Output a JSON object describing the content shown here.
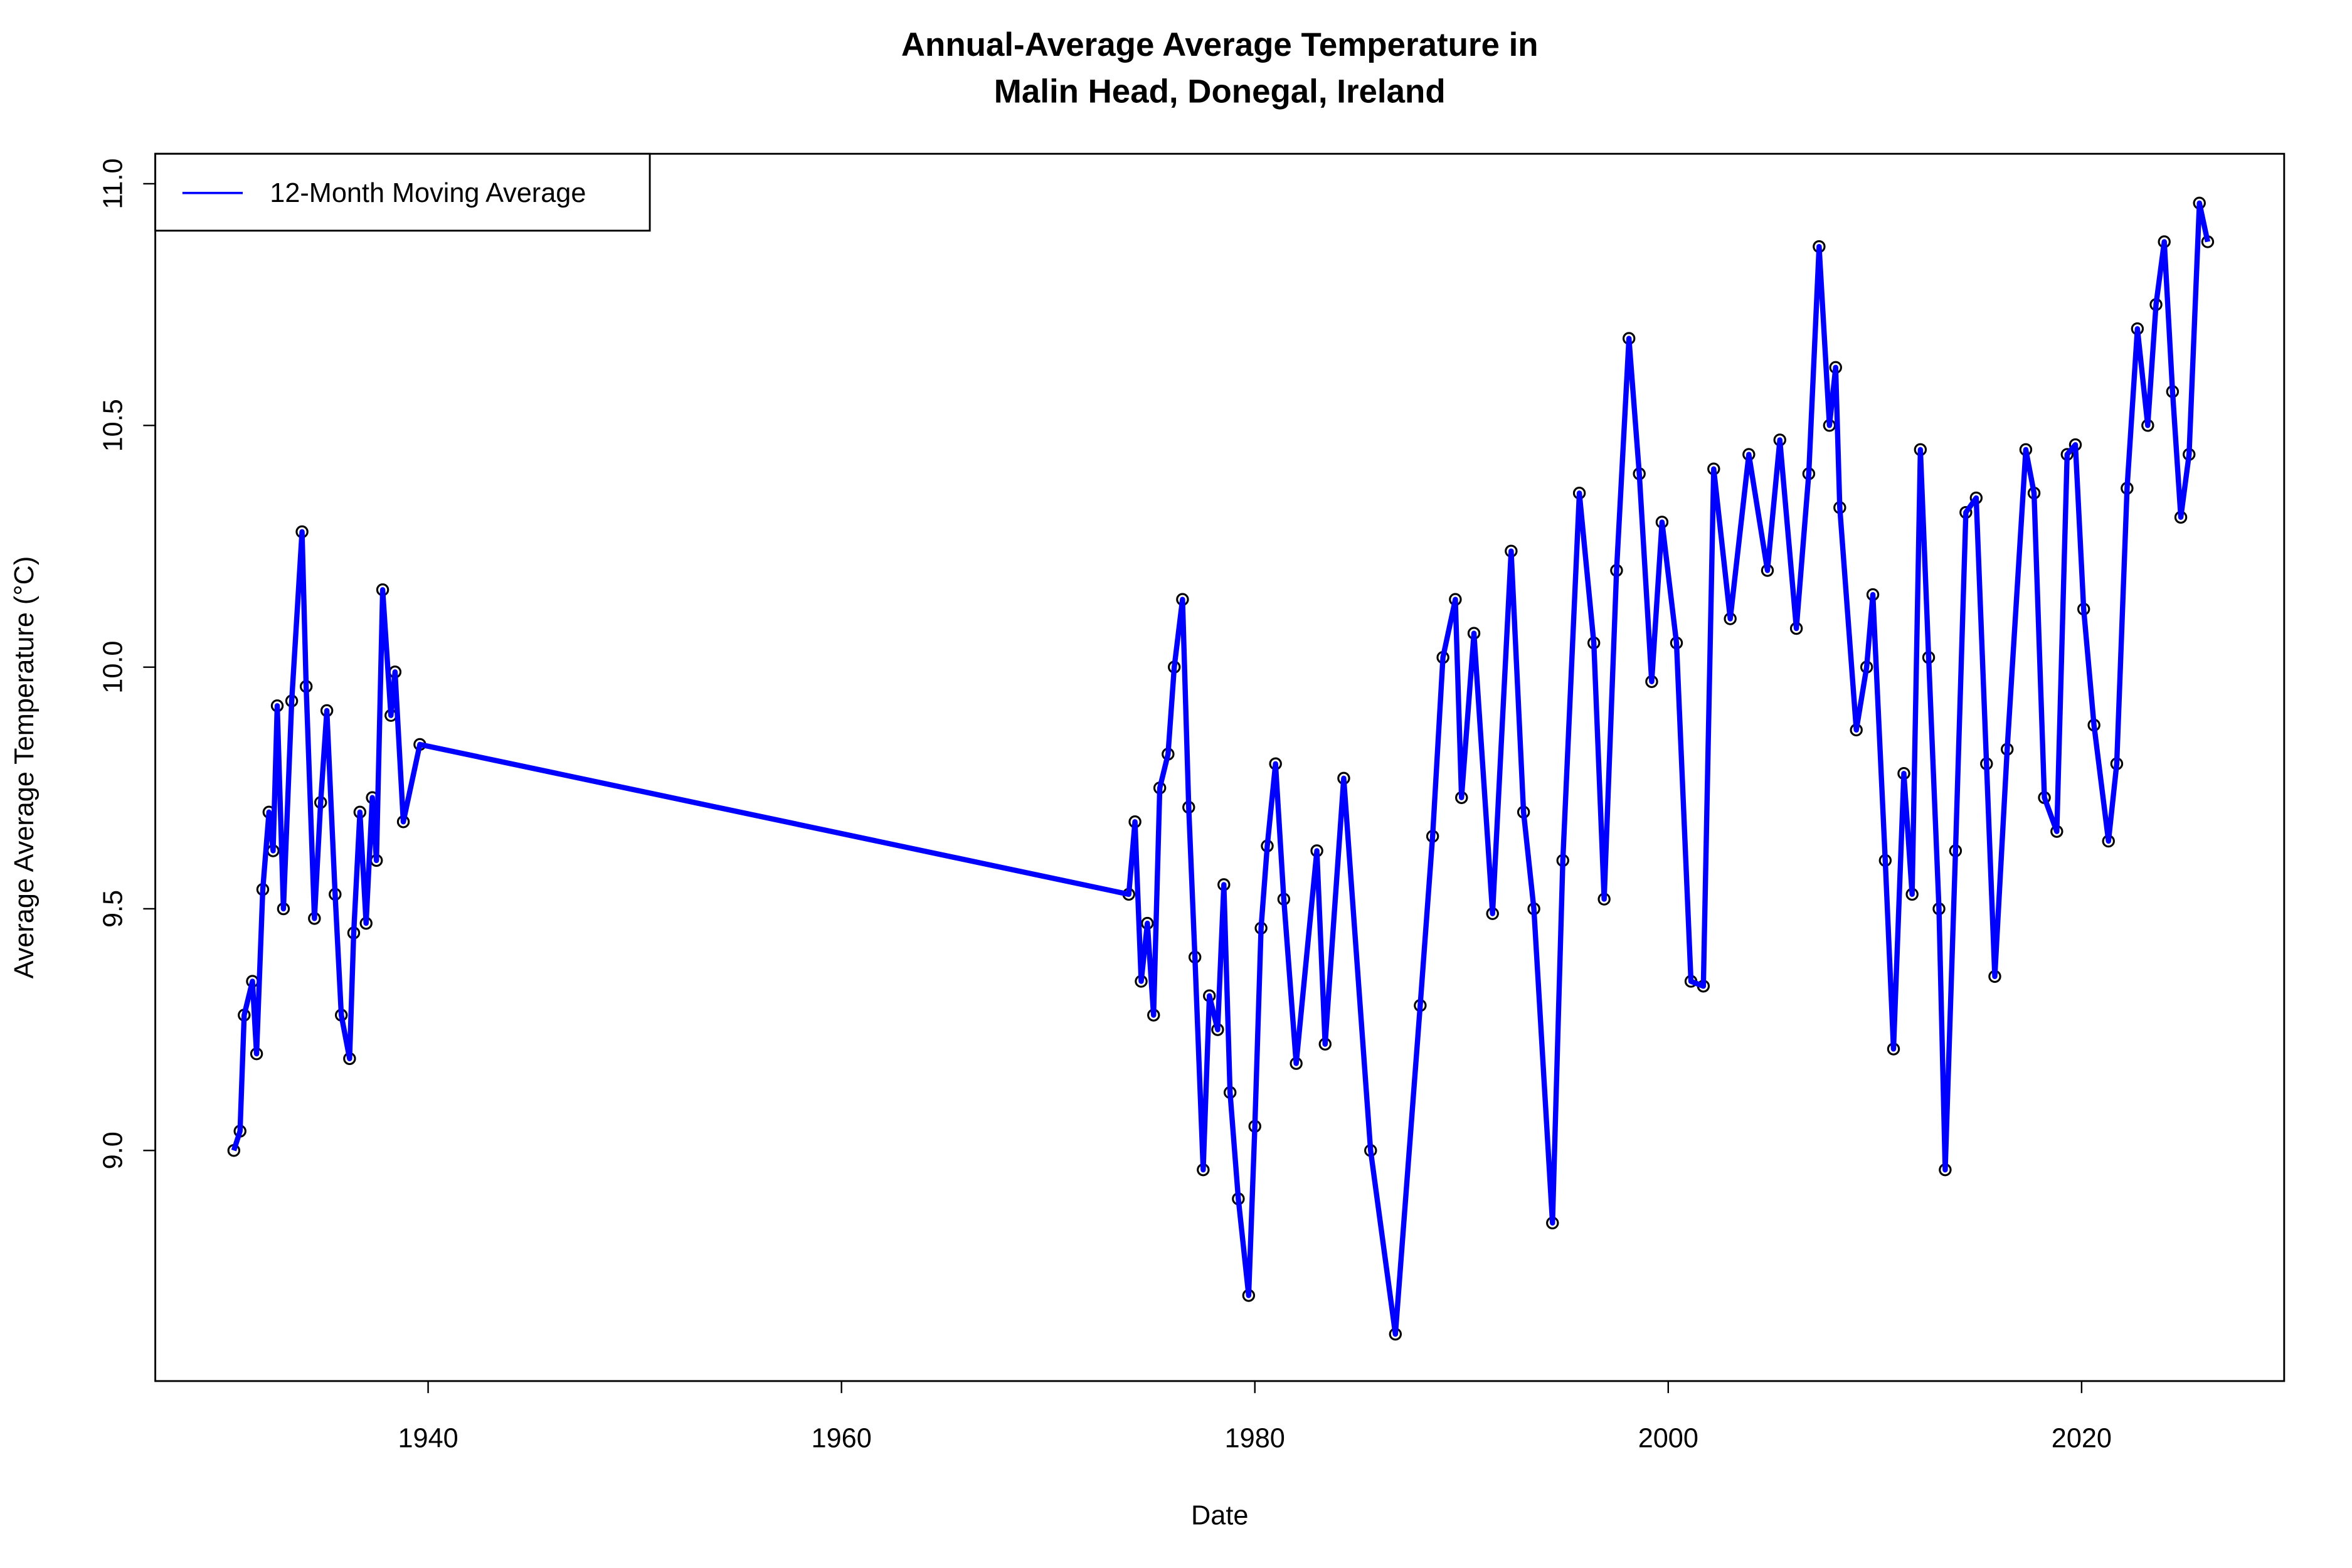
{
  "chart_data": {
    "type": "line",
    "title": [
      "Annual-Average Average Temperature in",
      "Malin Head, Donegal, Ireland"
    ],
    "xlabel": "Date",
    "ylabel": "Average Average Temperature (°C)",
    "xlim": [
      1926.8,
      2029.8
    ],
    "ylim": [
      8.523,
      11.062
    ],
    "xticks": [
      1940,
      1960,
      1980,
      2000,
      2020
    ],
    "yticks": [
      {
        "value": 9,
        "label": "9.0"
      },
      {
        "value": 9.5,
        "label": "9.5"
      },
      {
        "value": 10,
        "label": "10.0"
      },
      {
        "value": 10.5,
        "label": "10.5"
      },
      {
        "value": 11,
        "label": "11.0"
      }
    ],
    "legend": "top-left",
    "marker_color": "#000000",
    "x": [
      1930.6,
      1930.9,
      1931.1,
      1931.5,
      1931.7,
      1932.0,
      1932.3,
      1932.5,
      1932.7,
      1933.0,
      1933.4,
      1933.9,
      1934.1,
      1934.5,
      1934.8,
      1935.1,
      1935.5,
      1935.8,
      1936.2,
      1936.4,
      1936.7,
      1937.0,
      1937.3,
      1937.5,
      1937.8,
      1938.2,
      1938.4,
      1938.8,
      1939.6,
      1973.9,
      1974.2,
      1974.5,
      1974.8,
      1975.1,
      1975.4,
      1975.8,
      1976.1,
      1976.5,
      1976.8,
      1977.1,
      1977.5,
      1977.8,
      1978.2,
      1978.5,
      1978.8,
      1979.2,
      1979.7,
      1980.0,
      1980.3,
      1980.6,
      1981.0,
      1981.4,
      1982.0,
      1983.0,
      1983.4,
      1984.3,
      1985.6,
      1986.8,
      1988.0,
      1988.6,
      1989.1,
      1989.7,
      1990.0,
      1990.6,
      1991.5,
      1992.4,
      1993.0,
      1993.5,
      1994.4,
      1994.9,
      1995.7,
      1996.4,
      1996.9,
      1997.5,
      1998.1,
      1998.6,
      1999.2,
      1999.7,
      2000.4,
      2001.1,
      2001.7,
      2002.2,
      2003.0,
      2003.9,
      2004.8,
      2005.4,
      2006.2,
      2006.8,
      2007.3,
      2007.8,
      2008.1,
      2008.3,
      2009.1,
      2009.6,
      2009.9,
      2010.5,
      2010.9,
      2011.4,
      2011.8,
      2012.2,
      2012.6,
      2013.1,
      2013.4,
      2013.9,
      2014.4,
      2014.9,
      2015.4,
      2015.8,
      2016.4,
      2017.3,
      2017.7,
      2018.2,
      2018.8,
      2019.3,
      2019.7,
      2020.1,
      2020.6,
      2021.3,
      2021.7,
      2022.2,
      2022.7,
      2023.2,
      2023.6,
      2024.0,
      2024.4,
      2024.8,
      2025.2,
      2025.7,
      2026.1
    ],
    "series": [
      {
        "name": "12-Month Moving Average",
        "color": "#0000ff",
        "values": [
          9.0,
          9.04,
          9.28,
          9.35,
          9.2,
          9.54,
          9.7,
          9.62,
          9.92,
          9.5,
          9.93,
          10.28,
          9.96,
          9.48,
          9.72,
          9.91,
          9.53,
          9.28,
          9.19,
          9.45,
          9.7,
          9.47,
          9.73,
          9.6,
          10.16,
          9.9,
          9.99,
          9.68,
          9.84,
          9.53,
          9.68,
          9.35,
          9.47,
          9.28,
          9.75,
          9.82,
          10.0,
          10.14,
          9.71,
          9.4,
          8.96,
          9.32,
          9.25,
          9.55,
          9.12,
          8.9,
          8.7,
          9.05,
          9.46,
          9.63,
          9.8,
          9.52,
          9.18,
          9.62,
          9.22,
          9.77,
          9.0,
          8.62,
          9.3,
          9.65,
          10.02,
          10.14,
          9.73,
          10.07,
          9.49,
          10.24,
          9.7,
          9.5,
          8.85,
          9.6,
          10.36,
          10.05,
          9.52,
          10.2,
          10.68,
          10.4,
          9.97,
          10.3,
          10.05,
          9.35,
          9.34,
          10.41,
          10.1,
          10.44,
          10.2,
          10.47,
          10.08,
          10.4,
          10.87,
          10.5,
          10.62,
          10.33,
          9.87,
          10.0,
          10.15,
          9.6,
          9.21,
          9.78,
          9.53,
          10.45,
          10.02,
          9.5,
          8.96,
          9.62,
          10.32,
          10.35,
          9.8,
          9.36,
          9.83,
          10.45,
          10.36,
          9.73,
          9.66,
          10.44,
          10.46,
          10.12,
          9.88,
          9.64,
          9.8,
          10.37,
          10.7,
          10.5,
          10.75,
          10.88,
          10.57,
          10.31,
          10.44,
          10.96,
          10.88
        ]
      }
    ]
  }
}
